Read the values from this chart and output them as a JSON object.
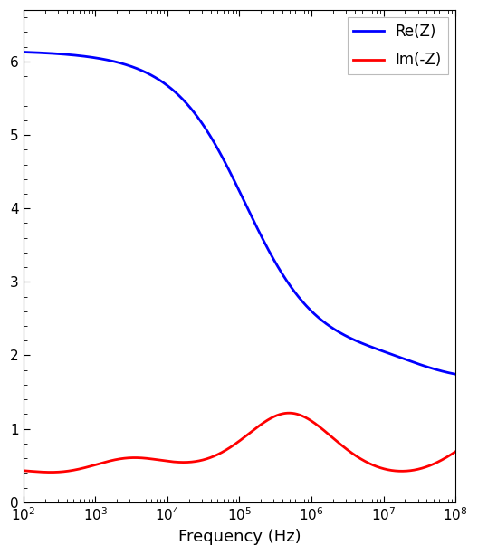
{
  "title": "",
  "xlabel": "Frequency (Hz)",
  "ylabel": "",
  "xlim_log": [
    2,
    8
  ],
  "ylim": [
    0,
    6.7
  ],
  "yticks": [
    0,
    1,
    2,
    3,
    4,
    5,
    6
  ],
  "legend_labels": [
    "Re(Z)",
    "Im(-Z)"
  ],
  "legend_colors": [
    "blue",
    "red"
  ],
  "line_width": 2.0,
  "background_color": "#ffffff",
  "fig_facecolor": "#ffffff",
  "xlabel_fontsize": 13,
  "tick_labelsize": 11
}
